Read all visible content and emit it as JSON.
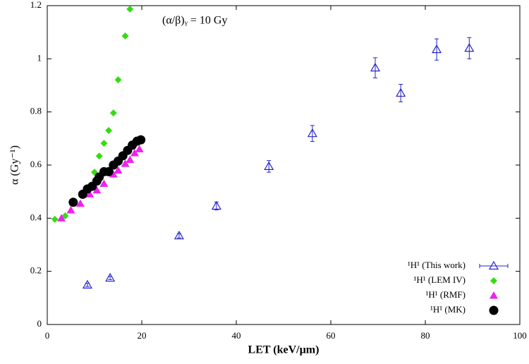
{
  "chart_data": {
    "type": "scatter",
    "annotation": "(α/β)ᵧ = 10 Gy",
    "x_label": "LET (keV/µm)",
    "y_label": "α (Gy⁻¹)",
    "xlim": [
      0,
      100
    ],
    "xticks": [
      0,
      20,
      40,
      60,
      80,
      100
    ],
    "ylim": [
      0,
      1.2
    ],
    "yticks": [
      0,
      0.2,
      0.4,
      0.6,
      0.8,
      1,
      1.2
    ],
    "legend": "bottom-right",
    "series": [
      {
        "name": "¹H¹ (This work)",
        "color": "#2424c8",
        "marker": "triangle-open",
        "x": [
          8.5,
          13.3,
          27.9,
          35.8,
          46.9,
          56.1,
          69.4,
          74.8,
          82.4,
          89.3
        ],
        "values": [
          0.149,
          0.175,
          0.334,
          0.446,
          0.595,
          0.719,
          0.966,
          0.871,
          1.035,
          1.04
        ],
        "yerr": [
          0.006,
          0.006,
          0.008,
          0.015,
          0.022,
          0.03,
          0.038,
          0.033,
          0.04,
          0.04
        ]
      },
      {
        "name": "¹H¹ (LEM IV)",
        "color": "#33dd11",
        "marker": "diamond",
        "x": [
          1.6,
          3.8,
          10,
          11,
          12,
          13,
          14,
          15,
          16.5,
          17.5
        ],
        "values": [
          0.396,
          0.409,
          0.573,
          0.634,
          0.682,
          0.73,
          0.796,
          0.921,
          1.086,
          1.187
        ]
      },
      {
        "name": "¹H¹ (RMF)",
        "color": "#ee22ee",
        "marker": "triangle",
        "x": [
          3,
          5,
          7,
          9,
          10.5,
          12,
          14,
          15,
          16.5,
          17.5,
          18.5,
          19.5
        ],
        "values": [
          0.4,
          0.43,
          0.455,
          0.49,
          0.505,
          0.53,
          0.565,
          0.58,
          0.605,
          0.62,
          0.645,
          0.66
        ]
      },
      {
        "name": "¹H¹ (MK)",
        "color": "#000000",
        "marker": "circle",
        "x": [
          5.5,
          7.5,
          8.5,
          9.5,
          10.5,
          11,
          12,
          13,
          14,
          15,
          16,
          17,
          18,
          19,
          19.8
        ],
        "values": [
          0.46,
          0.49,
          0.51,
          0.52,
          0.54,
          0.555,
          0.575,
          0.575,
          0.6,
          0.615,
          0.635,
          0.655,
          0.675,
          0.69,
          0.695
        ]
      }
    ]
  }
}
